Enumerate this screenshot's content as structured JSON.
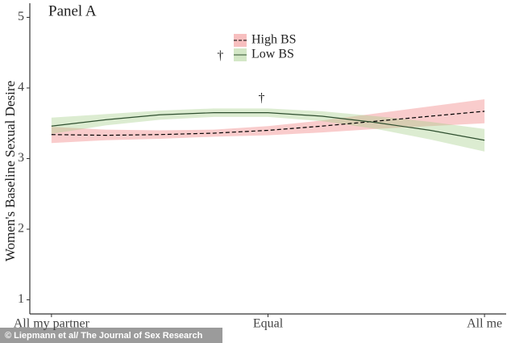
{
  "chart_data": {
    "type": "line",
    "title": "Panel A",
    "y_label": "Women's Baseline Sexual Desire",
    "x": [
      -1,
      -0.75,
      -0.5,
      -0.25,
      0,
      0.25,
      0.5,
      0.75,
      1
    ],
    "xlim": [
      -1.1,
      1.1
    ],
    "xticks": [
      {
        "value": -1,
        "label": "All my partner"
      },
      {
        "value": 0,
        "label": "Equal"
      },
      {
        "value": 1,
        "label": "All me"
      }
    ],
    "ylim": [
      0.8,
      5.2
    ],
    "yticks": [
      1,
      2,
      3,
      4,
      5
    ],
    "grid": false,
    "legend": "top-center",
    "series": [
      {
        "name": "High BS",
        "color": "#000000",
        "band_color": "#f08080",
        "dash": true,
        "values": [
          3.34,
          3.33,
          3.34,
          3.36,
          3.4,
          3.46,
          3.53,
          3.6,
          3.67
        ],
        "lower": [
          3.22,
          3.26,
          3.28,
          3.31,
          3.33,
          3.37,
          3.42,
          3.46,
          3.5
        ],
        "upper": [
          3.45,
          3.41,
          3.4,
          3.41,
          3.46,
          3.54,
          3.64,
          3.74,
          3.84
        ]
      },
      {
        "name": "Low BS",
        "color": "#2f4f2f",
        "band_color": "#a8d08d",
        "dash": false,
        "values": [
          3.46,
          3.55,
          3.62,
          3.65,
          3.65,
          3.6,
          3.51,
          3.4,
          3.26
        ],
        "lower": [
          3.35,
          3.47,
          3.55,
          3.59,
          3.59,
          3.53,
          3.42,
          3.27,
          3.1
        ],
        "upper": [
          3.58,
          3.63,
          3.68,
          3.71,
          3.71,
          3.67,
          3.6,
          3.52,
          3.42
        ]
      }
    ],
    "annotations": [
      {
        "text": "†",
        "x": -0.22,
        "y": 4.45
      },
      {
        "text": "†",
        "x": -0.03,
        "y": 3.85
      }
    ],
    "credit": "© Liepmann et al/ The Journal of Sex Research"
  }
}
